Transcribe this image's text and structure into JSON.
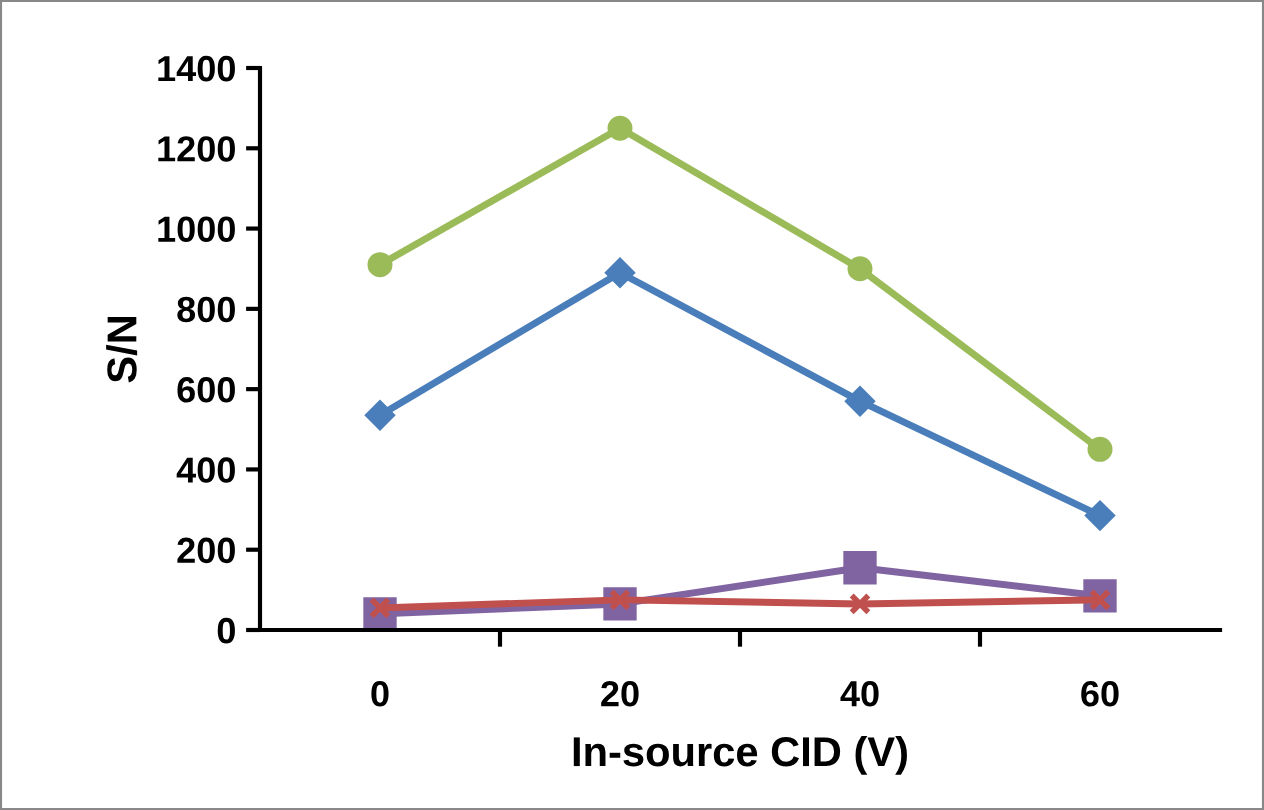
{
  "chart_data": {
    "type": "line",
    "xlabel": "In-source CID (V)",
    "ylabel": "S/N",
    "categories": [
      "0",
      "20",
      "40",
      "60"
    ],
    "ylim": [
      0,
      1400
    ],
    "yticks": [
      0,
      200,
      400,
      600,
      800,
      1000,
      1200,
      1400
    ],
    "grid": false,
    "legend": false,
    "series": [
      {
        "color": "#9bbb59",
        "marker": "circle",
        "values": [
          910,
          1250,
          900,
          450
        ]
      },
      {
        "color": "#4a7ebb",
        "marker": "diamond",
        "values": [
          535,
          890,
          570,
          285
        ]
      },
      {
        "color": "#8064a2",
        "marker": "square",
        "values": [
          40,
          65,
          155,
          85
        ]
      },
      {
        "color": "#c0504d",
        "marker": "cross",
        "values": [
          55,
          75,
          65,
          75
        ]
      }
    ]
  }
}
